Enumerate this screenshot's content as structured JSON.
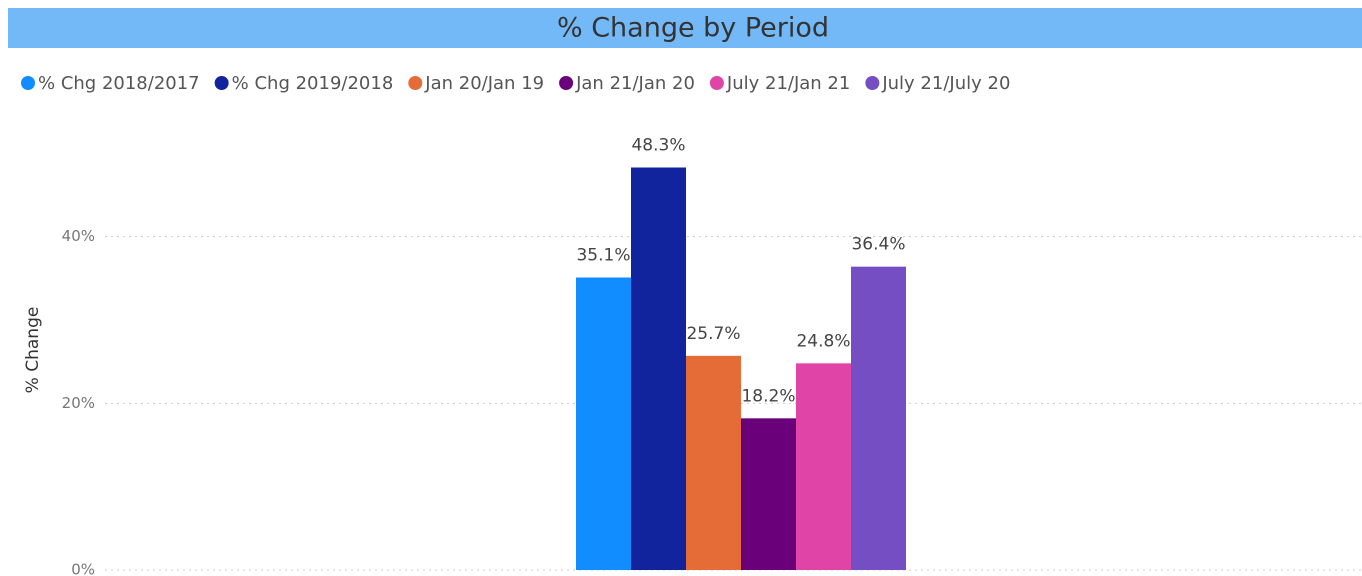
{
  "chart_data": {
    "type": "bar",
    "title": "% Change by Period",
    "y_label": "% Change",
    "categories": [
      null
    ],
    "series": [
      {
        "name": "% Chg 2018/2017",
        "color": "#118dff",
        "values": [
          35.1
        ],
        "value_labels": [
          "35.1%"
        ]
      },
      {
        "name": "% Chg 2019/2018",
        "color": "#12239e",
        "values": [
          48.3
        ],
        "value_labels": [
          "48.3%"
        ]
      },
      {
        "name": "Jan 20/Jan 19",
        "color": "#e66c37",
        "values": [
          25.7
        ],
        "value_labels": [
          "25.7%"
        ]
      },
      {
        "name": "Jan 21/Jan 20",
        "color": "#6b007b",
        "values": [
          18.2
        ],
        "value_labels": [
          "18.2%"
        ]
      },
      {
        "name": "July 21/Jan 21",
        "color": "#e044a7",
        "values": [
          24.8
        ],
        "value_labels": [
          "24.8%"
        ]
      },
      {
        "name": "July 21/July 20",
        "color": "#744ec2",
        "values": [
          36.4
        ],
        "value_labels": [
          "36.4%"
        ]
      }
    ],
    "ylim": [
      0,
      54
    ],
    "yticks": [
      {
        "value": 0,
        "label": "0%"
      },
      {
        "value": 20,
        "label": "20%"
      },
      {
        "value": 40,
        "label": "40%"
      }
    ],
    "grid": true,
    "legend": "top-left"
  }
}
